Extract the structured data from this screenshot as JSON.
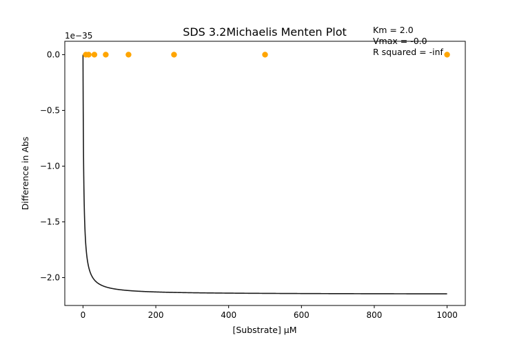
{
  "chart_data": {
    "type": "scatter",
    "title": "SDS 3.2Michaelis Menten Plot",
    "xlabel": "[Substrate] µM",
    "ylabel": "Difference in Abs",
    "y_offset_label": "1e−35",
    "xlim": [
      -50,
      1050
    ],
    "ylim": [
      -2.25,
      0.12
    ],
    "x_ticks": [
      0,
      200,
      400,
      600,
      800,
      1000
    ],
    "x_tick_labels": [
      "0",
      "200",
      "400",
      "600",
      "800",
      "1000"
    ],
    "y_ticks": [
      0.0,
      -0.5,
      -1.0,
      -1.5,
      -2.0
    ],
    "y_tick_labels": [
      "0.0",
      "−0.5",
      "−1.0",
      "−1.5",
      "−2.0"
    ],
    "grid": false,
    "annotations": [
      "Km = 2.0",
      "Vmax = -0.0",
      "R squared = -inf"
    ],
    "series": [
      {
        "kind": "scatter",
        "color": "#ffa500",
        "x": [
          7.8,
          15.6,
          31.25,
          62.5,
          125,
          250,
          500,
          1000
        ],
        "y": [
          0,
          0,
          0,
          0,
          0,
          0,
          0,
          0
        ]
      },
      {
        "kind": "line",
        "color": "#1a1a1a",
        "model": "michaelis-menten",
        "Km": 2.0,
        "Vmax": -2.15,
        "x_range": [
          0,
          1000
        ]
      }
    ]
  }
}
